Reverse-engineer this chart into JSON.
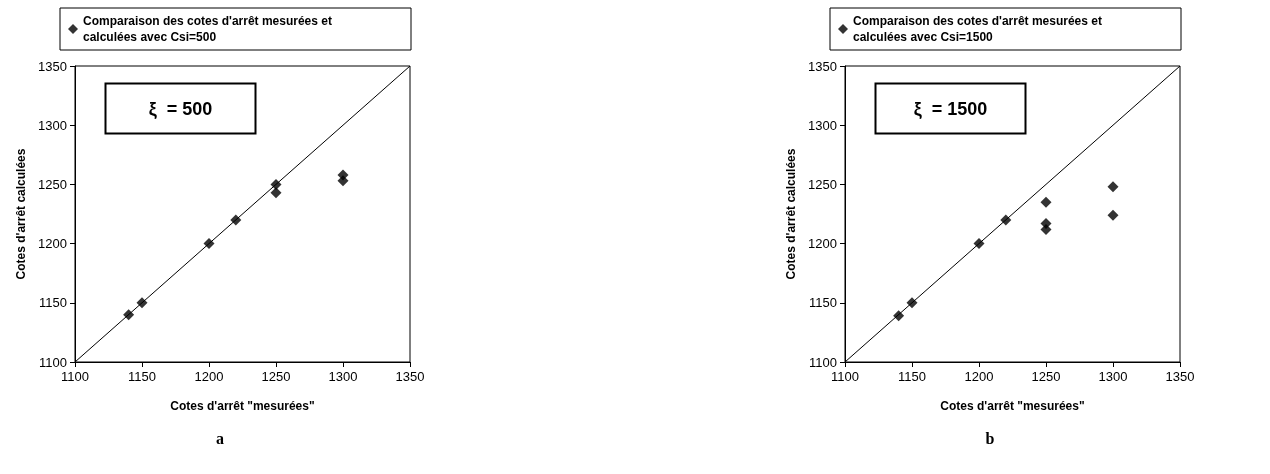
{
  "chart_data": [
    {
      "type": "scatter",
      "xlabel": "Cotes d'arrêt \"mesurées\"",
      "ylabel": "Cotes d'arrêt calculées",
      "annotations": [
        "ξ  = 500",
        "a"
      ],
      "xlim": [
        1100,
        1350
      ],
      "ylim": [
        1100,
        1350
      ],
      "xticks": [
        1100,
        1150,
        1200,
        1250,
        1300,
        1350
      ],
      "yticks": [
        1100,
        1150,
        1200,
        1250,
        1300,
        1350
      ],
      "grid": false,
      "legend": "top",
      "marker": "diamond",
      "series": [
        {
          "name": "Comparaison des cotes d'arrêt mesurées et calculées avec Csi=500",
          "color": "#000000",
          "x": [
            1140,
            1150,
            1200,
            1220,
            1250,
            1250,
            1300,
            1300
          ],
          "values": [
            1140,
            1150,
            1200,
            1220,
            1250,
            1243,
            1258,
            1253
          ]
        },
        {
          "type": "line",
          "color": "#000000",
          "marker": "none",
          "x": [
            1100,
            1350
          ],
          "values": [
            1100,
            1350
          ]
        }
      ]
    },
    {
      "type": "scatter",
      "xlabel": "Cotes d'arrêt \"mesurées\"",
      "ylabel": "Cotes d'arrêt calculées",
      "annotations": [
        "ξ  = 1500",
        "b"
      ],
      "xlim": [
        1100,
        1350
      ],
      "ylim": [
        1100,
        1350
      ],
      "xticks": [
        1100,
        1150,
        1200,
        1250,
        1300,
        1350
      ],
      "yticks": [
        1100,
        1150,
        1200,
        1250,
        1300,
        1350
      ],
      "grid": false,
      "legend": "top",
      "marker": "diamond",
      "series": [
        {
          "name": "Comparaison des cotes d'arrêt mesurées et calculées avec Csi=1500",
          "color": "#000000",
          "x": [
            1140,
            1150,
            1200,
            1220,
            1250,
            1250,
            1250,
            1300,
            1300
          ],
          "values": [
            1139,
            1150,
            1200,
            1220,
            1235,
            1217,
            1212,
            1248,
            1224
          ]
        },
        {
          "type": "line",
          "color": "#000000",
          "marker": "none",
          "x": [
            1100,
            1350
          ],
          "values": [
            1100,
            1350
          ]
        }
      ]
    }
  ]
}
